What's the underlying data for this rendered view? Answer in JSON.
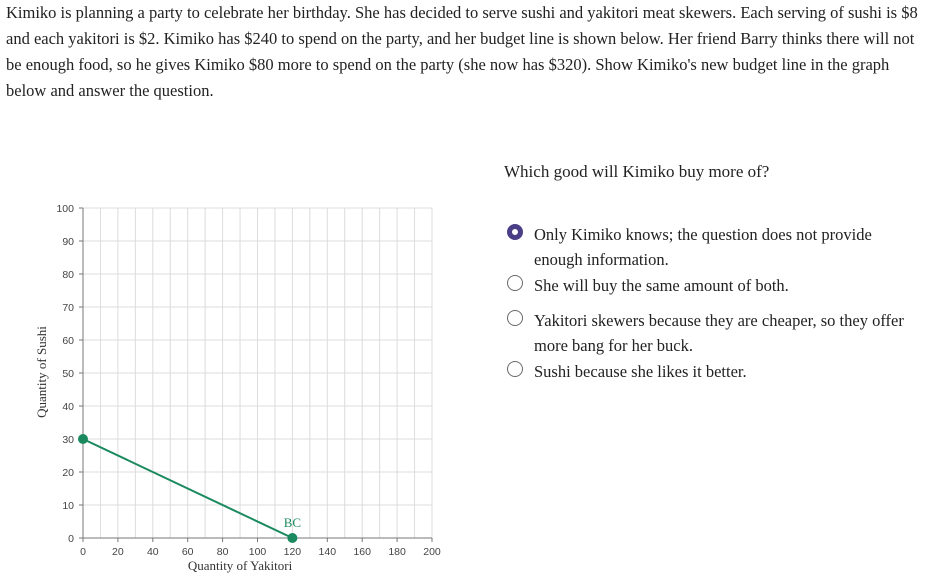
{
  "prompt": "Kimiko is planning a party to celebrate her birthday. She has decided to serve sushi and yakitori meat skewers. Each serving of sushi is $8 and each yakitori is $2. Kimiko has $240 to spend on the party, and her budget line is shown below. Her friend Barry thinks there will not be enough food, so he gives Kimiko $80 more to spend on the party (she now has $320). Show Kimiko's new budget line in the graph below and answer the question.",
  "chart_data": {
    "type": "line",
    "xlabel": "Quantity of Yakitori",
    "ylabel": "Quantity of Sushi",
    "xlim": [
      0,
      200
    ],
    "ylim": [
      0,
      100
    ],
    "x_ticks": [
      0,
      20,
      40,
      60,
      80,
      100,
      120,
      140,
      160,
      180,
      200
    ],
    "y_ticks": [
      0,
      10,
      20,
      30,
      40,
      50,
      60,
      70,
      80,
      90,
      100
    ],
    "grid": true,
    "series": [
      {
        "name": "BC",
        "color": "#1a8a5e",
        "points": [
          [
            0,
            30
          ],
          [
            120,
            0
          ]
        ]
      }
    ]
  },
  "question": {
    "text": "Which good will Kimiko buy more of?",
    "options": [
      {
        "label": "Only Kimiko knows; the question does not provide enough information.",
        "selected": true
      },
      {
        "label": "She will buy the same amount of both.",
        "selected": false
      },
      {
        "label": "Yakitori skewers because they are cheaper, so they offer more bang for her buck.",
        "selected": false
      },
      {
        "label": "Sushi because she likes it better.",
        "selected": false
      }
    ]
  }
}
